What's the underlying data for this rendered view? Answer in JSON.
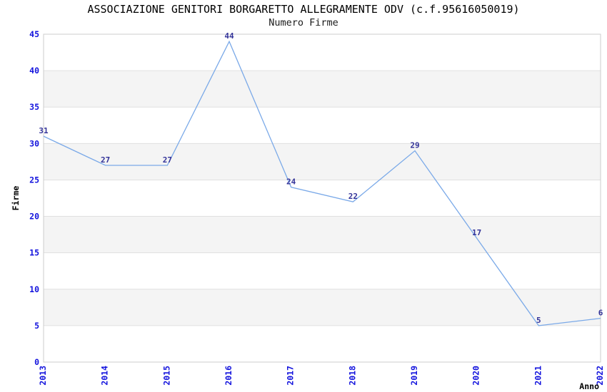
{
  "header": {
    "title": "ASSOCIAZIONE GENITORI BORGARETTO ALLEGRAMENTE ODV (c.f.95616050019)",
    "subtitle": "Numero Firme"
  },
  "chart_data": {
    "type": "line",
    "title": "ASSOCIAZIONE GENITORI BORGARETTO ALLEGRAMENTE ODV (c.f.95616050019)",
    "subtitle": "Numero Firme",
    "xlabel": "Anno",
    "ylabel": "Firme",
    "categories": [
      "2013",
      "2014",
      "2015",
      "2016",
      "2017",
      "2018",
      "2019",
      "2020",
      "2021",
      "2022"
    ],
    "values": [
      31,
      27,
      27,
      44,
      24,
      22,
      29,
      17,
      5,
      6
    ],
    "ylim": [
      0,
      45
    ],
    "ytick_step": 5,
    "yticks": [
      0,
      5,
      10,
      15,
      20,
      25,
      30,
      35,
      40,
      45
    ],
    "grid": "horizontal-only",
    "alternating_bands": true,
    "legend": "none",
    "point_markers": false,
    "value_labels_shown": true,
    "colors": {
      "line": "#7aa9e8",
      "tick_label": "#1212dd",
      "value_label": "#333399",
      "band": "#f4f4f4",
      "gridline": "#e0e0e0",
      "frame": "#cccccc",
      "axis_title": "#000000"
    }
  }
}
